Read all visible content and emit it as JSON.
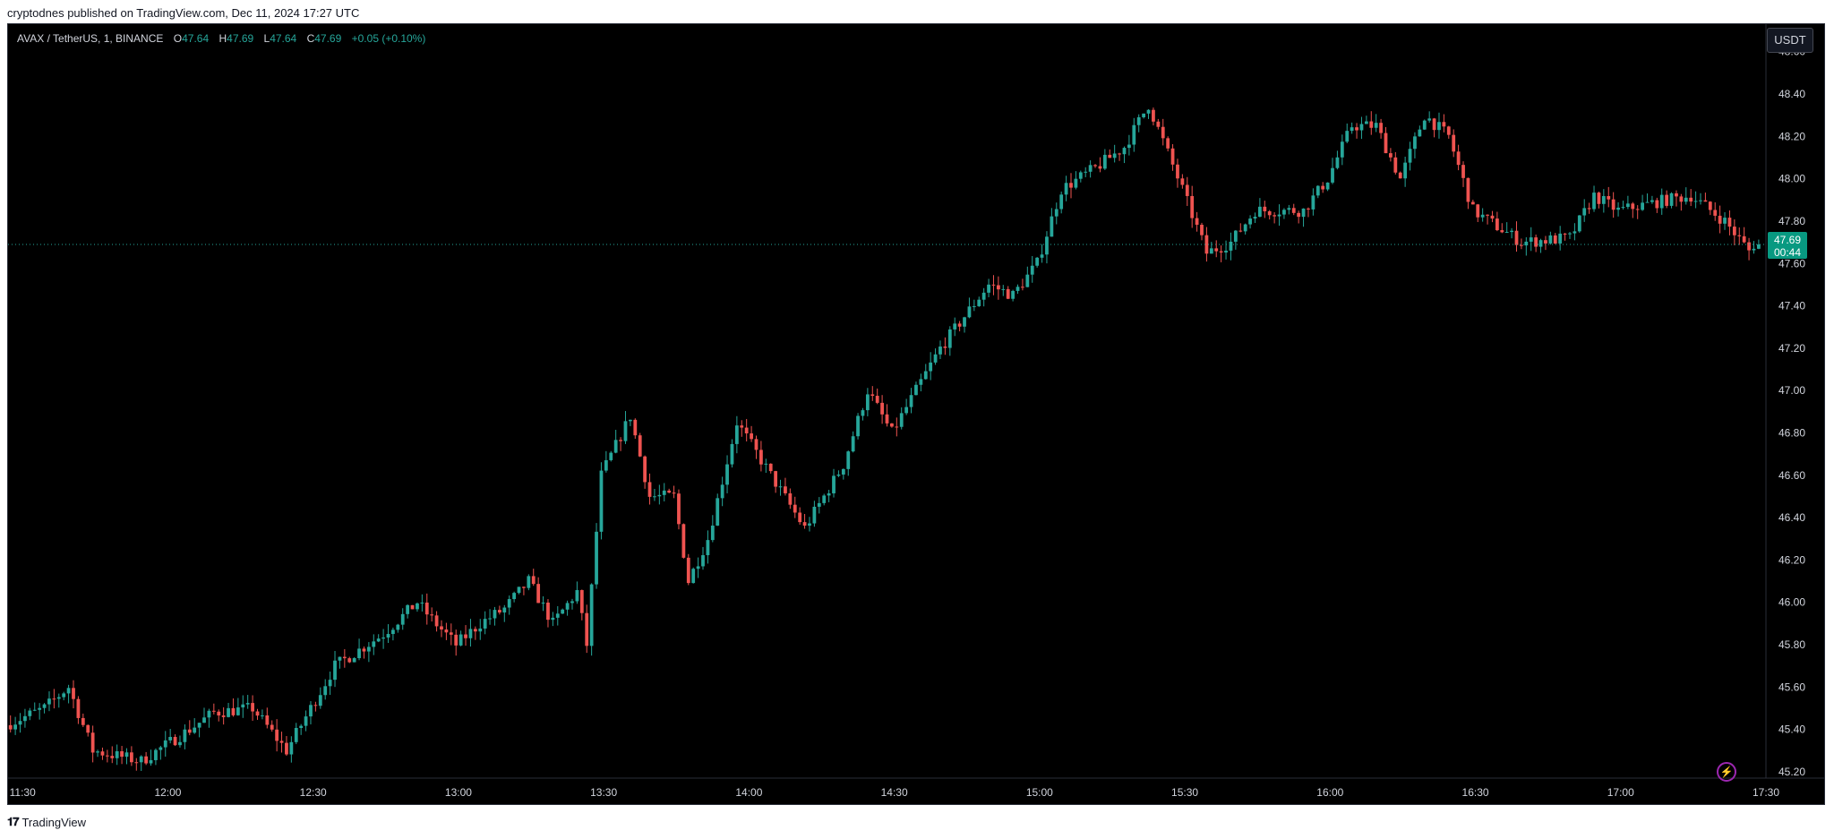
{
  "header": {
    "publish_text": "cryptodnes published on TradingView.com, Dec 11, 2024 17:27 UTC"
  },
  "legend": {
    "symbol": "AVAX / TetherUS, 1, BINANCE",
    "open_label": "O",
    "open": "47.64",
    "high_label": "H",
    "high": "47.69",
    "low_label": "L",
    "low": "47.64",
    "close_label": "C",
    "close": "47.69",
    "change": "+0.05 (+0.10%)"
  },
  "currency_button": "USDT",
  "price_tag": {
    "price": "47.69",
    "countdown": "00:44"
  },
  "footer": {
    "brand": "TradingView",
    "logo_icon": "tradingview-logo-icon"
  },
  "colors": {
    "up": "#26a69a",
    "down": "#ef5350",
    "background": "#000000",
    "axis_text": "#d1d4dc",
    "tag": "#089981"
  },
  "chart_data": {
    "type": "candlestick",
    "symbol": "AVAX / TetherUS",
    "interval": "1",
    "ylim": [
      45.17,
      48.73
    ],
    "y_ticks": [
      "48.60",
      "48.40",
      "48.20",
      "48.00",
      "47.80",
      "47.60",
      "47.40",
      "47.20",
      "47.00",
      "46.80",
      "46.60",
      "46.40",
      "46.20",
      "46.00",
      "45.80",
      "45.60",
      "45.40",
      "45.20"
    ],
    "x_ticks": [
      "11:30",
      "12:00",
      "12:30",
      "13:00",
      "13:30",
      "14:00",
      "14:30",
      "15:00",
      "15:30",
      "16:00",
      "16:30",
      "17:00",
      "17:30"
    ],
    "x_range": [
      "11:27",
      "17:30"
    ],
    "last_price": 47.69,
    "price_path": [
      [
        "11:27",
        45.42
      ],
      [
        "11:35",
        45.5
      ],
      [
        "11:40",
        45.6
      ],
      [
        "11:45",
        45.3
      ],
      [
        "11:55",
        45.25
      ],
      [
        "12:05",
        45.4
      ],
      [
        "12:10",
        45.48
      ],
      [
        "12:18",
        45.5
      ],
      [
        "12:25",
        45.3
      ],
      [
        "12:30",
        45.5
      ],
      [
        "12:35",
        45.7
      ],
      [
        "12:45",
        45.85
      ],
      [
        "12:52",
        46.0
      ],
      [
        "12:55",
        45.92
      ],
      [
        "13:00",
        45.8
      ],
      [
        "13:05",
        45.9
      ],
      [
        "13:10",
        45.97
      ],
      [
        "13:15",
        46.1
      ],
      [
        "13:20",
        45.9
      ],
      [
        "13:25",
        46.05
      ],
      [
        "13:27",
        45.8
      ],
      [
        "13:30",
        46.6
      ],
      [
        "13:36",
        46.88
      ],
      [
        "13:40",
        46.5
      ],
      [
        "13:45",
        46.5
      ],
      [
        "13:48",
        46.1
      ],
      [
        "13:52",
        46.3
      ],
      [
        "13:58",
        46.85
      ],
      [
        "14:05",
        46.6
      ],
      [
        "14:12",
        46.35
      ],
      [
        "14:20",
        46.65
      ],
      [
        "14:25",
        47.0
      ],
      [
        "14:30",
        46.8
      ],
      [
        "14:40",
        47.2
      ],
      [
        "14:50",
        47.5
      ],
      [
        "14:55",
        47.45
      ],
      [
        "15:00",
        47.6
      ],
      [
        "15:05",
        47.95
      ],
      [
        "15:12",
        48.05
      ],
      [
        "15:18",
        48.15
      ],
      [
        "15:23",
        48.35
      ],
      [
        "15:30",
        47.95
      ],
      [
        "15:35",
        47.65
      ],
      [
        "15:40",
        47.7
      ],
      [
        "15:45",
        47.85
      ],
      [
        "15:55",
        47.85
      ],
      [
        "16:00",
        48.0
      ],
      [
        "16:05",
        48.25
      ],
      [
        "16:10",
        48.25
      ],
      [
        "16:15",
        48.0
      ],
      [
        "16:20",
        48.3
      ],
      [
        "16:25",
        48.2
      ],
      [
        "16:30",
        47.85
      ],
      [
        "16:40",
        47.7
      ],
      [
        "16:50",
        47.72
      ],
      [
        "16:55",
        47.92
      ],
      [
        "17:00",
        47.85
      ],
      [
        "17:10",
        47.9
      ],
      [
        "17:15",
        47.92
      ],
      [
        "17:22",
        47.8
      ],
      [
        "17:27",
        47.66
      ],
      [
        "17:28",
        47.69
      ]
    ]
  }
}
